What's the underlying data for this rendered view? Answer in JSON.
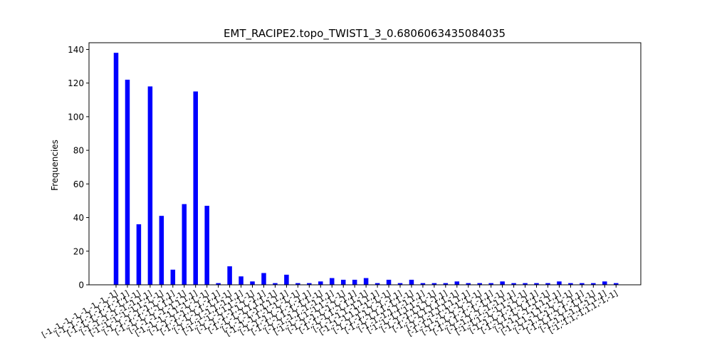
{
  "chart_data": {
    "type": "bar",
    "title": "EMT_RACIPE2.topo_TWIST1_3_0.6806063435084035",
    "xlabel": "",
    "ylabel": "Frequencies",
    "ylim": [
      0,
      144
    ],
    "yticks": [
      0,
      20,
      40,
      60,
      80,
      100,
      120,
      140
    ],
    "bar_color": "#0000ff",
    "grid": false,
    "categories": [
      "[-1,-1,-1,-1,-1,-1,-1,-1]",
      "[-1,-1,-1,-1,-1,-1,-1,1]",
      "[-1,-1,-1,-1,-1,-1,1,-1]",
      "[-1,-1,-1,-1,-1,-1,1,1]",
      "[-1,-1,-1,-1,-1,1,-1,-1]",
      "[-1,-1,-1,-1,-1,1,-1,1]",
      "[-1,-1,-1,-1,-1,1,1,-1]",
      "[-1,-1,-1,-1,-1,1,1,1]",
      "[-1,-1,-1,-1,1,-1,-1,-1]",
      "[-1,-1,-1,-1,1,-1,-1,1]",
      "[-1,-1,-1,-1,1,-1,1,-1]",
      "[-1,-1,-1,-1,1,-1,1,1]",
      "[-1,-1,-1,-1,1,1,-1,-1]",
      "[-1,-1,-1,-1,1,1,-1,1]",
      "[-1,-1,-1,-1,1,1,1,-1]",
      "[-1,-1,-1,-1,1,1,1,1]",
      "[-1,-1,-1,1,-1,-1,-1,-1]",
      "[-1,-1,-1,1,-1,-1,-1,1]",
      "[-1,-1,-1,1,-1,-1,1,-1]",
      "[-1,-1,-1,1,-1,-1,1,1]",
      "[-1,-1,-1,1,-1,1,-1,-1]",
      "[-1,-1,-1,1,-1,1,-1,1]",
      "[-1,-1,-1,1,-1,1,1,-1]",
      "[-1,-1,-1,1,-1,1,1,1]",
      "[-1,-1,-1,1,1,-1,-1,-1]",
      "[-1,-1,-1,1,1,-1,-1,1]",
      "[-1,-1,-1,1,1,-1,1,-1]",
      "[-1,-1,-1,1,1,-1,1,1]",
      "[-1,-1,-1,1,1,1,-1,-1]",
      "[-1,-1,-1,1,1,1,-1,1]",
      "[-1,-1,-1,1,1,1,1,-1]",
      "[-1,-1,-1,1,1,1,1,1]",
      "[-1,-1,1,-1,-1,-1,-1,-1]",
      "[-1,-1,1,-1,-1,-1,-1,1]",
      "[-1,-1,1,-1,-1,-1,1,-1]",
      "[-1,-1,1,-1,-1,-1,1,1]",
      "[-1,-1,1,-1,-1,1,-1,-1]",
      "[-1,-1,1,-1,-1,1,-1,1]",
      "[-1,-1,1,-1,-1,1,1,-1]",
      "[-1,-1,1,-1,-1,1,1,1]",
      "[-1,-1,1,-1,1,-1,-1,-1]",
      "[-1,-1,1,-1,1,-1,-1,1]",
      "[-1,-1,1,-1,1,-1,1,-1]",
      "[-1,-1,1,-1,1,-1,1,1]",
      "[-1,-1,1,-1,1,1,-1,-1]"
    ],
    "values": [
      138,
      122,
      36,
      118,
      41,
      9,
      48,
      115,
      47,
      1,
      11,
      5,
      2,
      7,
      1,
      6,
      1,
      1,
      2,
      4,
      3,
      3,
      4,
      1,
      3,
      1,
      3,
      1,
      1,
      1,
      2,
      1,
      1,
      1,
      2,
      1,
      1,
      1,
      1,
      2,
      1,
      1,
      1,
      2,
      1
    ]
  }
}
